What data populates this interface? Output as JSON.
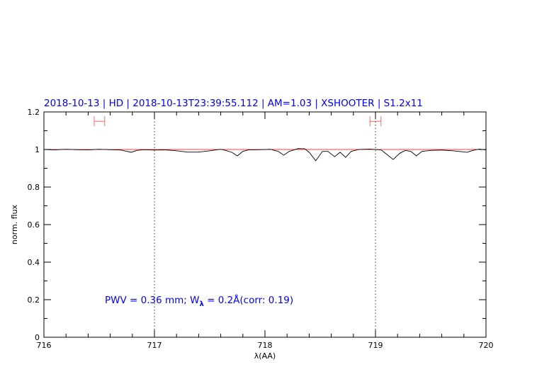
{
  "chart_data": {
    "type": "line",
    "title": "2018-10-13 | HD | 2018-10-13T23:39:55.112 | AM=1.03 | XSHOOTER | S1.2x11",
    "xlabel": "λ(AA)",
    "ylabel": "norm. flux",
    "xlim": [
      716,
      720
    ],
    "ylim": [
      0,
      1.2
    ],
    "xticks": [
      "716",
      "717",
      "718",
      "719",
      "720"
    ],
    "yticks": [
      "0",
      "0.2",
      "0.4",
      "0.6",
      "0.8",
      "1",
      "1.2"
    ],
    "grid": false,
    "annotation": {
      "pre": "PWV = 0.36 mm; W",
      "sub": "λ",
      "post": " = 0.2Å(corr: 0.19)"
    },
    "reference_line": {
      "y": 1.0,
      "color": "#ff0000"
    },
    "vertical_markers": [
      717,
      719
    ],
    "error_bars": [
      {
        "x0": 716.455,
        "x1": 716.55,
        "y": 1.15
      },
      {
        "x0": 718.95,
        "x1": 719.05,
        "y": 1.15
      }
    ],
    "colors": {
      "title": "#0000ff",
      "annotation": "#0000ff",
      "spectrum": "#000000",
      "error_bars": "#ff6666"
    },
    "series": [
      {
        "x": [
          716.0,
          716.1,
          716.2,
          716.3,
          716.4,
          716.5,
          716.6,
          716.7,
          716.75,
          716.79,
          716.84,
          716.9,
          717.0,
          717.1,
          717.2,
          717.3,
          717.4,
          717.5,
          717.6,
          717.65,
          717.7,
          717.75,
          717.8,
          717.85,
          717.95,
          718.05,
          718.12,
          718.17,
          718.22,
          718.3,
          718.36,
          718.4,
          718.46,
          718.52,
          718.57,
          718.63,
          718.68,
          718.73,
          718.78,
          718.85,
          718.95,
          719.05,
          719.1,
          719.16,
          719.22,
          719.27,
          719.32,
          719.37,
          719.42,
          719.5,
          719.6,
          719.7,
          719.78,
          719.83,
          719.88,
          719.94,
          720.0
        ],
        "y": [
          1.0,
          0.998,
          1.001,
          0.999,
          0.998,
          1.001,
          0.999,
          0.997,
          0.99,
          0.985,
          0.995,
          0.999,
          0.997,
          0.998,
          0.993,
          0.986,
          0.986,
          0.993,
          1.001,
          0.994,
          0.985,
          0.966,
          0.99,
          0.998,
          0.999,
          1.001,
          0.99,
          0.97,
          0.99,
          1.005,
          1.004,
          0.985,
          0.94,
          0.99,
          0.99,
          0.962,
          0.985,
          0.958,
          0.99,
          1.0,
          1.002,
          0.998,
          0.975,
          0.947,
          0.98,
          0.995,
          0.99,
          0.966,
          0.99,
          0.995,
          0.997,
          0.993,
          0.988,
          0.985,
          0.995,
          1.002,
          0.998
        ]
      }
    ]
  }
}
